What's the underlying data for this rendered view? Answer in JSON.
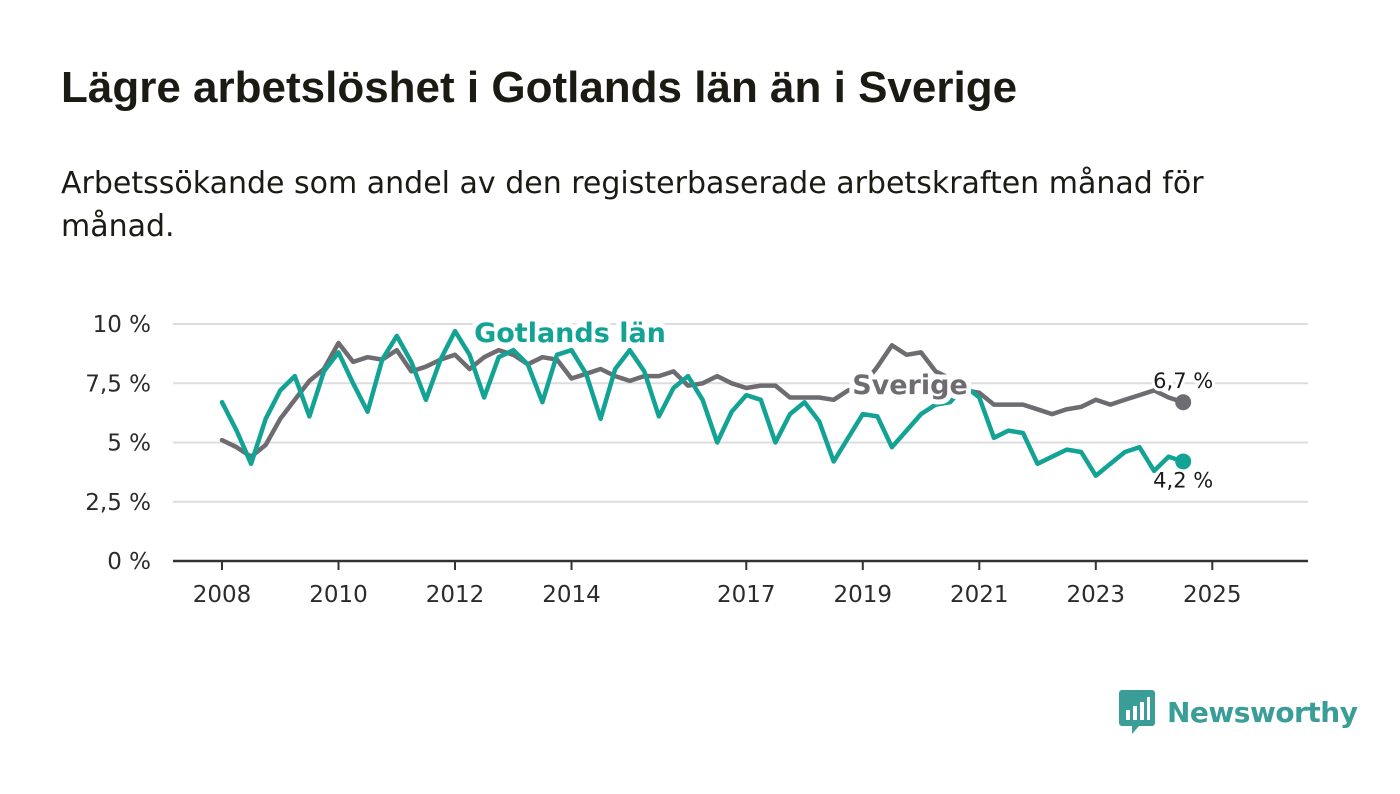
{
  "header": {
    "title": "Lägre arbetslöshet i Gotlands län än i Sverige",
    "subtitle": "Arbetssökande som andel av den registerbaserade arbetskraften månad för månad."
  },
  "branding": {
    "name": "Newsworthy",
    "icon": "bar-chart-speech-bubble-icon"
  },
  "colors": {
    "gotland": "#13a394",
    "sverige": "#6e6b71",
    "grid": "#dddddd",
    "axis": "#333333",
    "brand": "#3a9d97"
  },
  "chart_data": {
    "type": "line",
    "title": "Lägre arbetslöshet i Gotlands län än i Sverige",
    "xlabel": "",
    "ylabel": "",
    "x_start": 2008.0,
    "x_step_months": 3,
    "xlim": [
      2008.0,
      2025.75
    ],
    "ylim": [
      0,
      10
    ],
    "y_ticks": [
      0,
      2.5,
      5,
      7.5,
      10
    ],
    "y_tick_labels": [
      "0 %",
      "2,5 %",
      "5 %",
      "7,5 %",
      "10 %"
    ],
    "x_ticks": [
      2008,
      2010,
      2012,
      2014,
      2017,
      2019,
      2021,
      2023,
      2025
    ],
    "x_tick_labels": [
      "2008",
      "2010",
      "2012",
      "2014",
      "2017",
      "2019",
      "2021",
      "2023",
      "2025"
    ],
    "grid": true,
    "series": [
      {
        "name": "Sverige",
        "label": "Sverige",
        "last_label": "6,7 %",
        "values": [
          5.1,
          4.8,
          4.4,
          4.9,
          6.0,
          6.8,
          7.6,
          8.1,
          9.2,
          8.4,
          8.6,
          8.5,
          8.9,
          8.0,
          8.2,
          8.5,
          8.7,
          8.1,
          8.6,
          8.9,
          8.7,
          8.3,
          8.6,
          8.5,
          7.7,
          7.9,
          8.1,
          7.8,
          7.6,
          7.8,
          7.8,
          8.0,
          7.4,
          7.5,
          7.8,
          7.5,
          7.3,
          7.4,
          7.4,
          6.9,
          6.9,
          6.9,
          6.8,
          7.2,
          7.4,
          8.2,
          9.1,
          8.7,
          8.8,
          8.0,
          7.7,
          7.2,
          7.1,
          6.6,
          6.6,
          6.6,
          6.4,
          6.2,
          6.4,
          6.5,
          6.8,
          6.6,
          6.8,
          7.0,
          7.2,
          6.9,
          6.7
        ]
      },
      {
        "name": "Gotlands län",
        "label": "Gotlands län",
        "last_label": "4,2 %",
        "values": [
          6.7,
          5.5,
          4.1,
          6.0,
          7.2,
          7.8,
          6.1,
          8.0,
          8.8,
          7.5,
          6.3,
          8.5,
          9.5,
          8.4,
          6.8,
          8.5,
          9.7,
          8.7,
          6.9,
          8.6,
          8.9,
          8.3,
          6.7,
          8.7,
          8.9,
          7.9,
          6.0,
          8.1,
          8.9,
          8.0,
          6.1,
          7.3,
          7.8,
          6.8,
          5.0,
          6.3,
          7.0,
          6.8,
          5.0,
          6.2,
          6.7,
          5.9,
          4.2,
          5.2,
          6.2,
          6.1,
          4.8,
          5.5,
          6.2,
          6.6,
          6.7,
          7.4,
          6.9,
          5.2,
          5.5,
          5.4,
          4.1,
          4.4,
          4.7,
          4.6,
          3.6,
          4.1,
          4.6,
          4.8,
          3.8,
          4.4,
          4.2
        ]
      }
    ]
  }
}
